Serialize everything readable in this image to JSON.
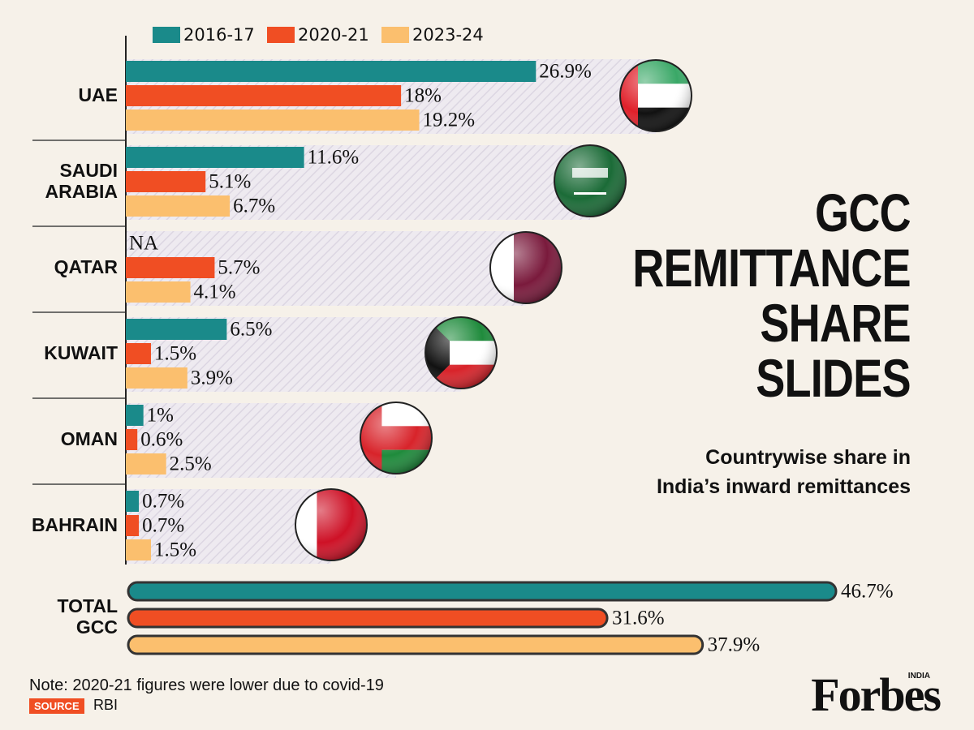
{
  "chart_data": {
    "type": "bar",
    "orientation": "horizontal",
    "title_lines": [
      "GCC",
      "REMITTANCE",
      "SHARE",
      "SLIDES"
    ],
    "subtitle_lines": [
      "Countrywise share in",
      "India’s inward remittances"
    ],
    "categories": [
      "UAE",
      "SAUDI ARABIA",
      "QATAR",
      "KUWAIT",
      "OMAN",
      "BAHRAIN"
    ],
    "series": [
      {
        "name": "2016-17",
        "color": "#1a8a8a",
        "values": [
          26.9,
          11.6,
          null,
          6.5,
          1,
          0.7
        ],
        "value_labels": [
          "26.9%",
          "11.6%",
          "NA",
          "6.5%",
          "1%",
          "0.7%"
        ]
      },
      {
        "name": "2020-21",
        "color": "#f04e23",
        "values": [
          18,
          5.1,
          5.7,
          1.5,
          0.6,
          0.7
        ],
        "value_labels": [
          "18%",
          "5.1%",
          "5.7%",
          "1.5%",
          "0.6%",
          "0.7%"
        ]
      },
      {
        "name": "2023-24",
        "color": "#fbbf6e",
        "values": [
          19.2,
          6.7,
          4.1,
          3.9,
          2.5,
          1.5
        ],
        "value_labels": [
          "19.2%",
          "6.7%",
          "4.1%",
          "3.9%",
          "2.5%",
          "1.5%"
        ]
      }
    ],
    "total": {
      "category": "TOTAL GCC",
      "values": [
        46.7,
        31.6,
        37.9
      ],
      "value_labels": [
        "46.7%",
        "31.6%",
        "37.9%"
      ]
    },
    "legend": "top-left",
    "note": "Note: 2020-21 figures were lower due to covid-19",
    "source_label": "SOURCE",
    "source": "RBI",
    "brand": "Forbes",
    "brand_edition": "INDIA"
  }
}
